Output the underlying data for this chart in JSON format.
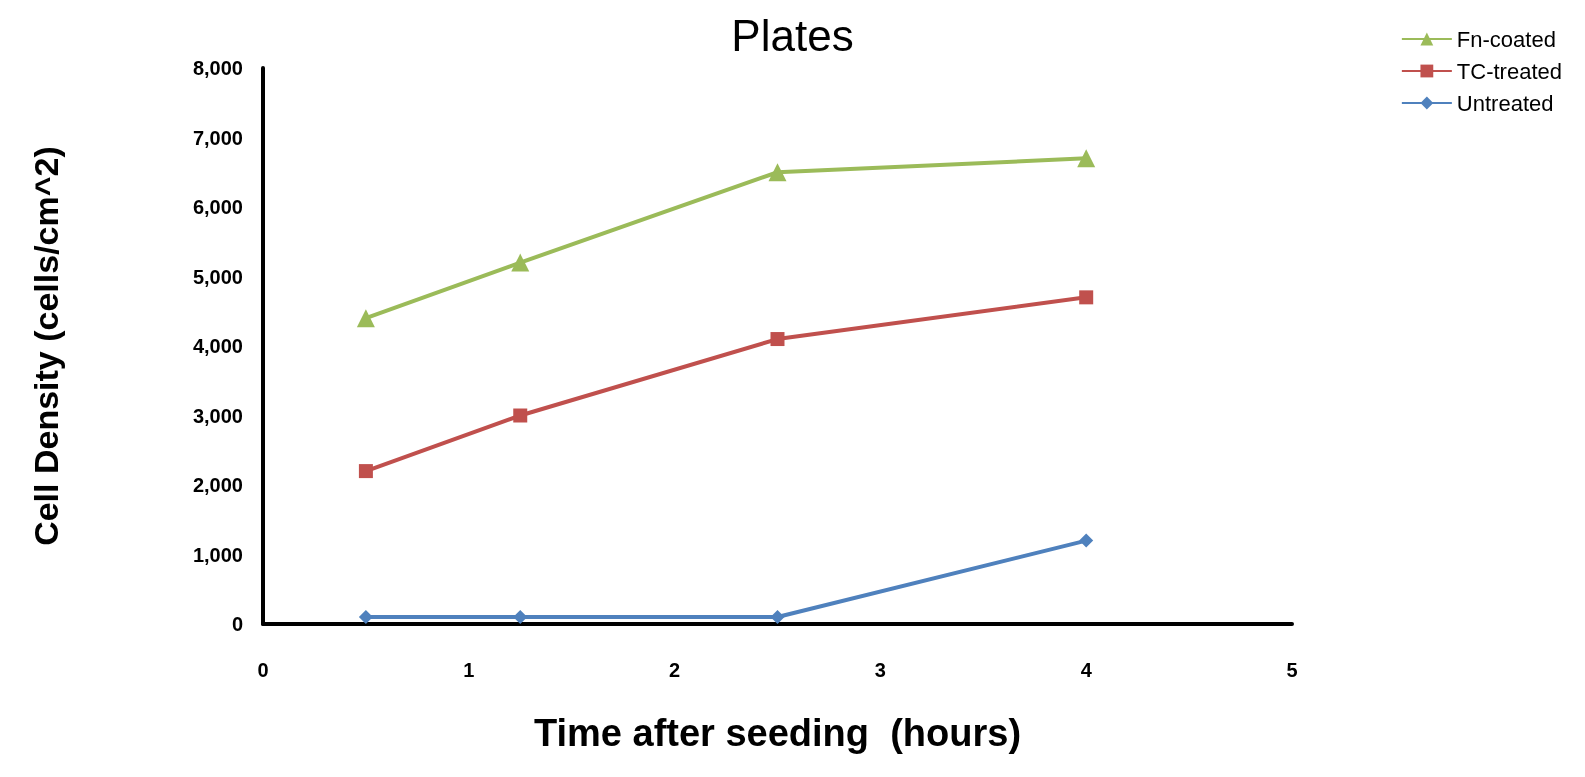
{
  "chart_data": {
    "type": "line",
    "title": "Plates",
    "xlabel": "Time after seeding  (hours)",
    "ylabel": "Cell Density (cells/cm^2)",
    "x": [
      0.5,
      1.25,
      2.5,
      4
    ],
    "series": [
      {
        "name": "Fn-coated",
        "color": "#9bbb59",
        "marker": "triangle",
        "values": [
          4400,
          5200,
          6500,
          6700
        ]
      },
      {
        "name": "TC-treated",
        "color": "#c0504d",
        "marker": "square",
        "values": [
          2200,
          3000,
          4100,
          4700
        ]
      },
      {
        "name": "Untreated",
        "color": "#4f81bd",
        "marker": "diamond",
        "values": [
          100,
          100,
          100,
          1200
        ]
      }
    ],
    "xlim": [
      0,
      5
    ],
    "xticks": [
      0,
      1,
      2,
      3,
      4,
      5
    ],
    "ylim": [
      0,
      8000
    ],
    "yticks": [
      0,
      {
        "value": 1000,
        "label": "1,000"
      },
      {
        "value": 2000,
        "label": "2,000"
      },
      {
        "value": 3000,
        "label": "3,000"
      },
      {
        "value": 4000,
        "label": "4,000"
      },
      {
        "value": 5000,
        "label": "5,000"
      },
      {
        "value": 6000,
        "label": "6,000"
      },
      {
        "value": 7000,
        "label": "7,000"
      },
      {
        "value": 8000,
        "label": "8,000"
      }
    ],
    "grid": false,
    "legend": "top right",
    "line_style": "solid"
  }
}
